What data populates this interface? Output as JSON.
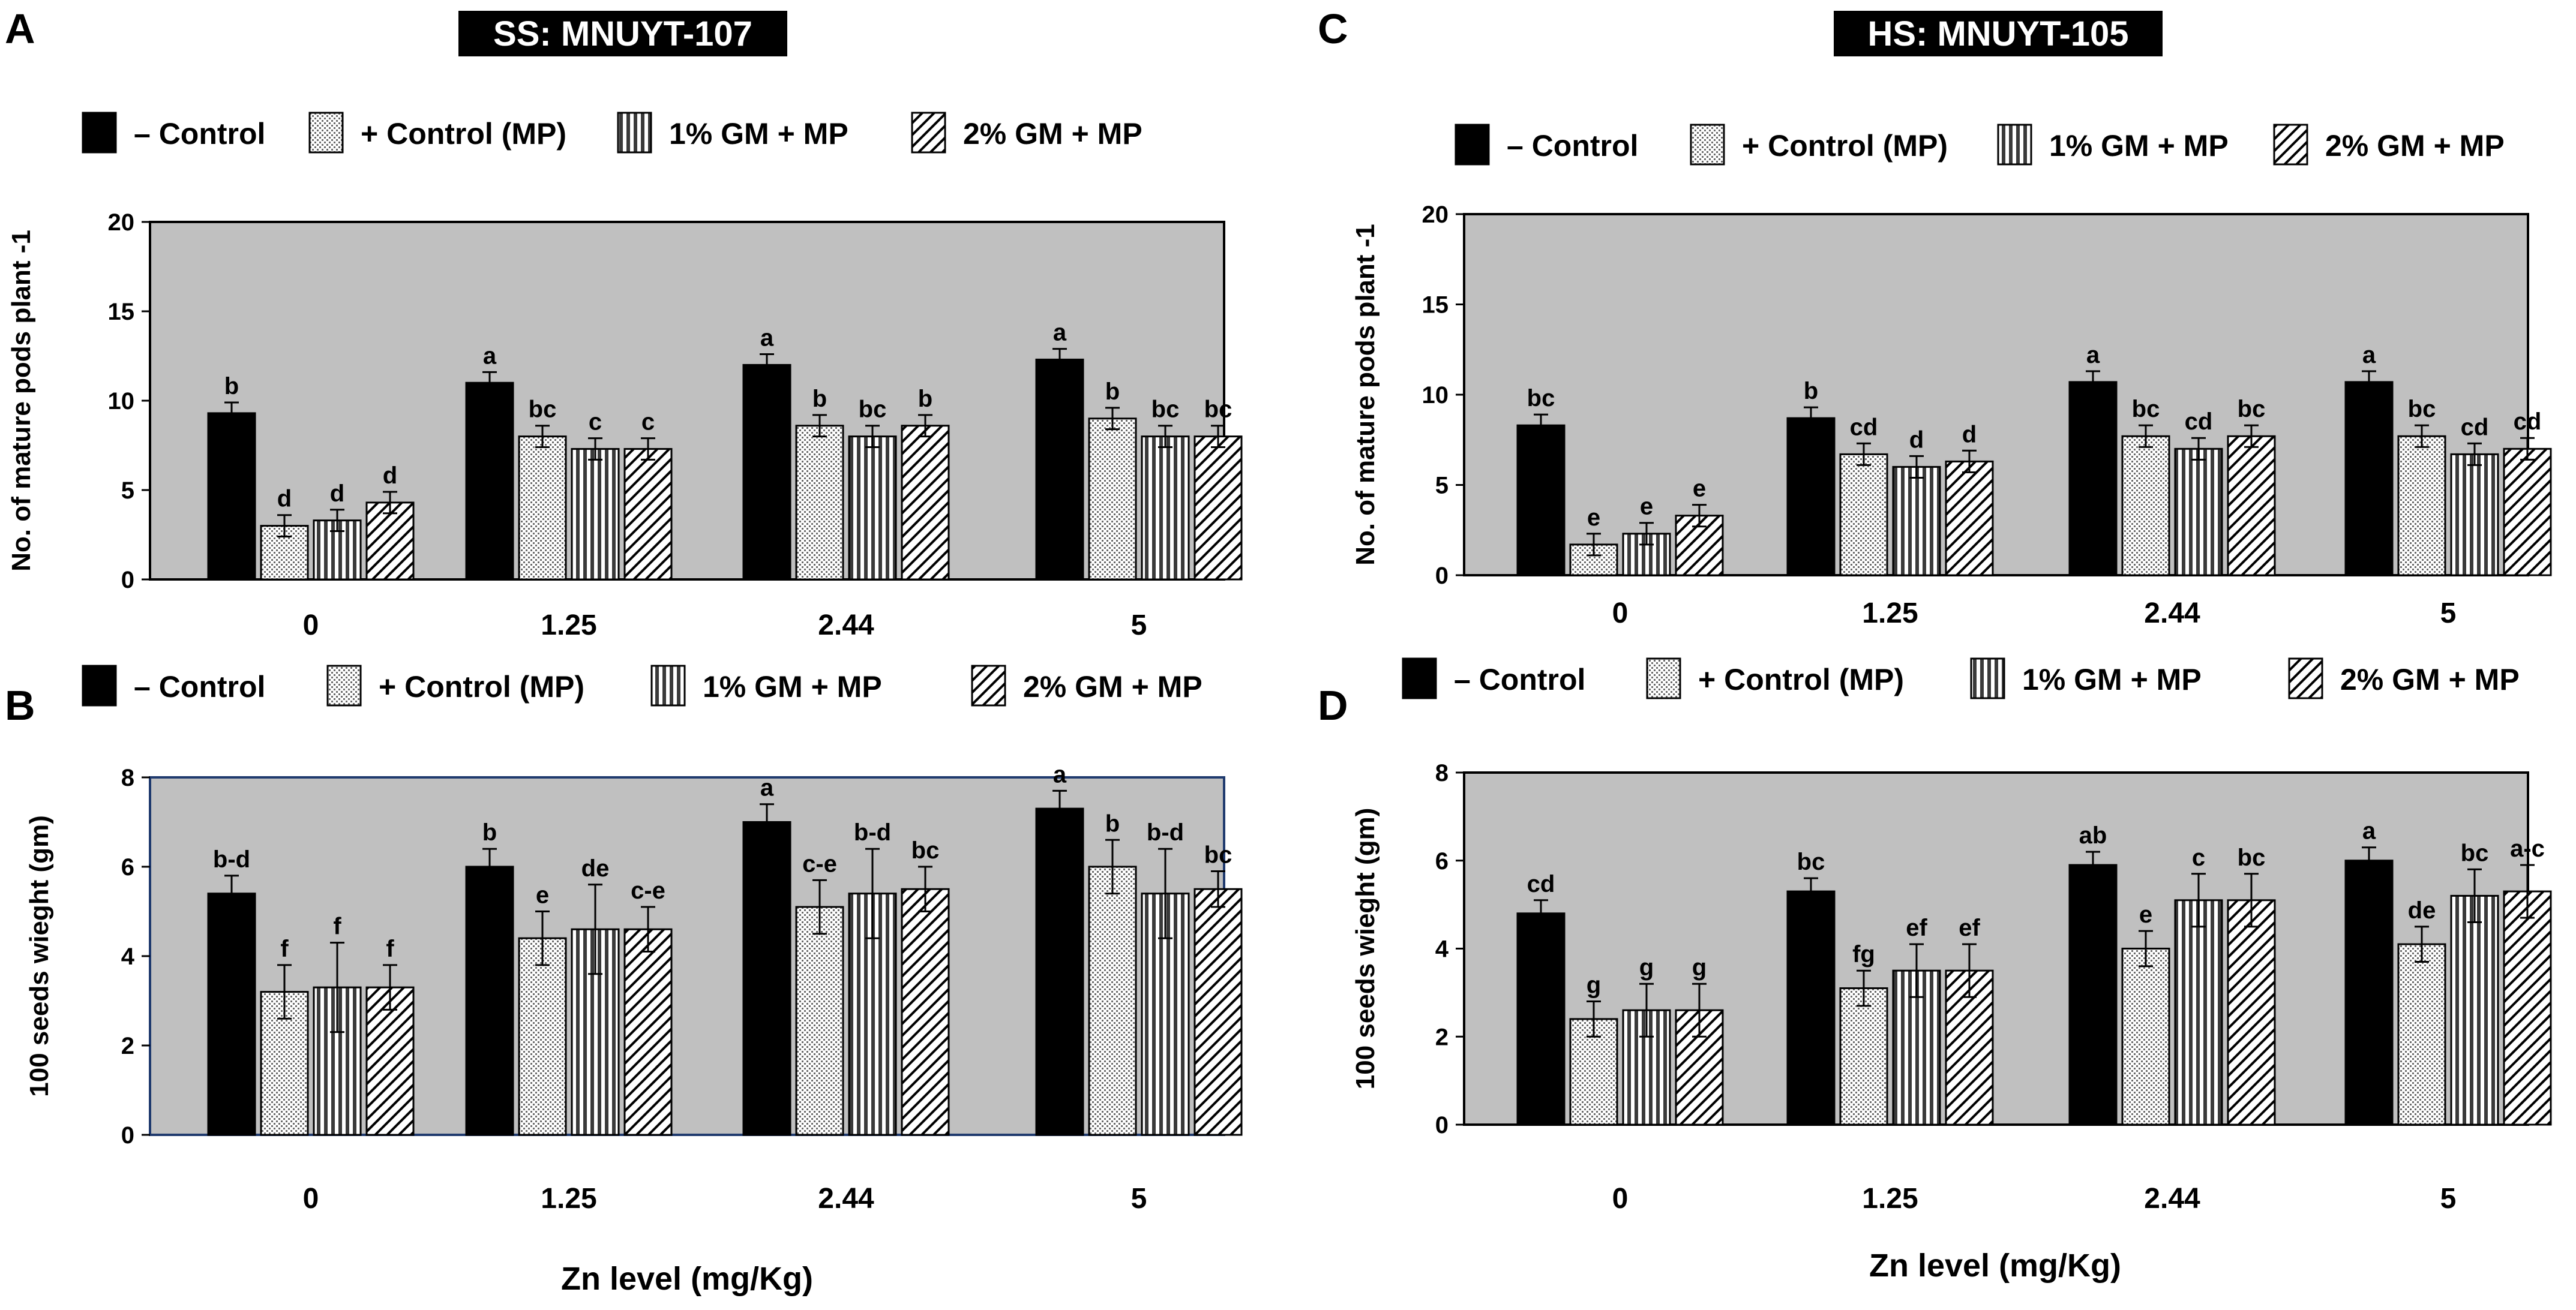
{
  "figure": {
    "x_axis_title": "Zn level (mg/Kg)",
    "legend_labels": [
      "– Control",
      "+ Control (MP)",
      "1% GM + MP",
      "2% GM + MP"
    ],
    "banners": {
      "SS": "SS: MNUYT-107",
      "HS": "HS: MNUYT-105"
    }
  },
  "colors": {
    "plot_bg": "#c0c0c0",
    "bar_control": "#000000",
    "bar_stroke": "#000000",
    "frame_default": "#000000",
    "frame_blue": "#1f3a6e"
  },
  "chart_data": [
    {
      "panel": "A",
      "type": "bar",
      "banner": "SS: MNUYT-107",
      "title": "",
      "xlabel": "",
      "ylabel": "No. of mature pods plant -1",
      "ylim": [
        0,
        20
      ],
      "yticks": [
        0,
        5,
        10,
        15,
        20
      ],
      "categories": [
        "0",
        "1.25",
        "2.44",
        "5"
      ],
      "legend": "top",
      "series": [
        {
          "name": "– Control",
          "values": [
            9.3,
            11.0,
            12.0,
            12.3
          ],
          "errors": [
            0.6,
            0.6,
            0.6,
            0.6
          ],
          "letters": [
            "b",
            "a",
            "a",
            "a"
          ]
        },
        {
          "name": "+ Control (MP)",
          "values": [
            3.0,
            8.0,
            8.6,
            9.0
          ],
          "errors": [
            0.6,
            0.6,
            0.6,
            0.6
          ],
          "letters": [
            "d",
            "bc",
            "b",
            "b"
          ]
        },
        {
          "name": "1% GM + MP",
          "values": [
            3.3,
            7.3,
            8.0,
            8.0
          ],
          "errors": [
            0.6,
            0.6,
            0.6,
            0.6
          ],
          "letters": [
            "d",
            "c",
            "bc",
            "bc"
          ]
        },
        {
          "name": "2% GM + MP",
          "values": [
            4.3,
            7.3,
            8.6,
            8.0
          ],
          "errors": [
            0.6,
            0.6,
            0.6,
            0.6
          ],
          "letters": [
            "d",
            "c",
            "b",
            "bc"
          ]
        }
      ]
    },
    {
      "panel": "B",
      "type": "bar",
      "banner": "",
      "title": "",
      "xlabel": "Zn level (mg/Kg)",
      "ylabel": "100 seeds wieght (gm)",
      "ylim": [
        0,
        8
      ],
      "yticks": [
        0,
        2,
        4,
        6,
        8
      ],
      "categories": [
        "0",
        "1.25",
        "2.44",
        "5"
      ],
      "legend": "top",
      "series": [
        {
          "name": "– Control",
          "values": [
            5.4,
            6.0,
            7.0,
            7.3
          ],
          "errors": [
            0.4,
            0.4,
            0.4,
            0.4
          ],
          "letters": [
            "b-d",
            "b",
            "a",
            "a"
          ]
        },
        {
          "name": "+ Control (MP)",
          "values": [
            3.2,
            4.4,
            5.1,
            6.0
          ],
          "errors": [
            0.6,
            0.6,
            0.6,
            0.6
          ],
          "letters": [
            "f",
            "e",
            "c-e",
            "b"
          ]
        },
        {
          "name": "1% GM + MP",
          "values": [
            3.3,
            4.6,
            5.4,
            5.4
          ],
          "errors": [
            1.0,
            1.0,
            1.0,
            1.0
          ],
          "letters": [
            "f",
            "de",
            "b-d",
            "b-d"
          ]
        },
        {
          "name": "2% GM + MP",
          "values": [
            3.3,
            4.6,
            5.5,
            5.5
          ],
          "errors": [
            0.5,
            0.5,
            0.5,
            0.4
          ],
          "letters": [
            "f",
            "c-e",
            "bc",
            "bc"
          ]
        }
      ]
    },
    {
      "panel": "C",
      "type": "bar",
      "banner": "HS: MNUYT-105",
      "title": "",
      "xlabel": "",
      "ylabel": "No. of mature pods plant -1",
      "ylim": [
        0,
        20
      ],
      "yticks": [
        0,
        5,
        10,
        15,
        20
      ],
      "categories": [
        "0",
        "1.25",
        "2.44",
        "5"
      ],
      "legend": "top",
      "series": [
        {
          "name": "– Control",
          "values": [
            8.3,
            8.7,
            10.7,
            10.7
          ],
          "errors": [
            0.6,
            0.6,
            0.6,
            0.6
          ],
          "letters": [
            "bc",
            "b",
            "a",
            "a"
          ]
        },
        {
          "name": "+ Control (MP)",
          "values": [
            1.7,
            6.7,
            7.7,
            7.7
          ],
          "errors": [
            0.6,
            0.6,
            0.6,
            0.6
          ],
          "letters": [
            "e",
            "cd",
            "bc",
            "bc"
          ]
        },
        {
          "name": "1% GM + MP",
          "values": [
            2.3,
            6.0,
            7.0,
            6.7
          ],
          "errors": [
            0.6,
            0.6,
            0.6,
            0.6
          ],
          "letters": [
            "e",
            "d",
            "cd",
            "cd"
          ]
        },
        {
          "name": "2% GM + MP",
          "values": [
            3.3,
            6.3,
            7.7,
            7.0
          ],
          "errors": [
            0.6,
            0.6,
            0.6,
            0.6
          ],
          "letters": [
            "e",
            "d",
            "bc",
            "cd"
          ]
        }
      ]
    },
    {
      "panel": "D",
      "type": "bar",
      "banner": "",
      "title": "",
      "xlabel": "Zn level (mg/Kg)",
      "ylabel": "100 seeds wieght (gm)",
      "ylim": [
        0,
        8
      ],
      "yticks": [
        0,
        2,
        4,
        6,
        8
      ],
      "categories": [
        "0",
        "1.25",
        "2.44",
        "5"
      ],
      "legend": "top",
      "series": [
        {
          "name": "– Control",
          "values": [
            4.8,
            5.3,
            5.9,
            6.0
          ],
          "errors": [
            0.3,
            0.3,
            0.3,
            0.3
          ],
          "letters": [
            "cd",
            "bc",
            "ab",
            "a"
          ]
        },
        {
          "name": "+ Control (MP)",
          "values": [
            2.4,
            3.1,
            4.0,
            4.1
          ],
          "errors": [
            0.4,
            0.4,
            0.4,
            0.4
          ],
          "letters": [
            "g",
            "fg",
            "e",
            "de"
          ]
        },
        {
          "name": "1% GM + MP",
          "values": [
            2.6,
            3.5,
            5.1,
            5.2
          ],
          "errors": [
            0.6,
            0.6,
            0.6,
            0.6
          ],
          "letters": [
            "g",
            "ef",
            "c",
            "bc"
          ]
        },
        {
          "name": "2% GM + MP",
          "values": [
            2.6,
            3.5,
            5.1,
            5.3
          ],
          "errors": [
            0.6,
            0.6,
            0.6,
            0.6
          ],
          "letters": [
            "g",
            "ef",
            "bc",
            "a-c"
          ]
        }
      ]
    }
  ]
}
